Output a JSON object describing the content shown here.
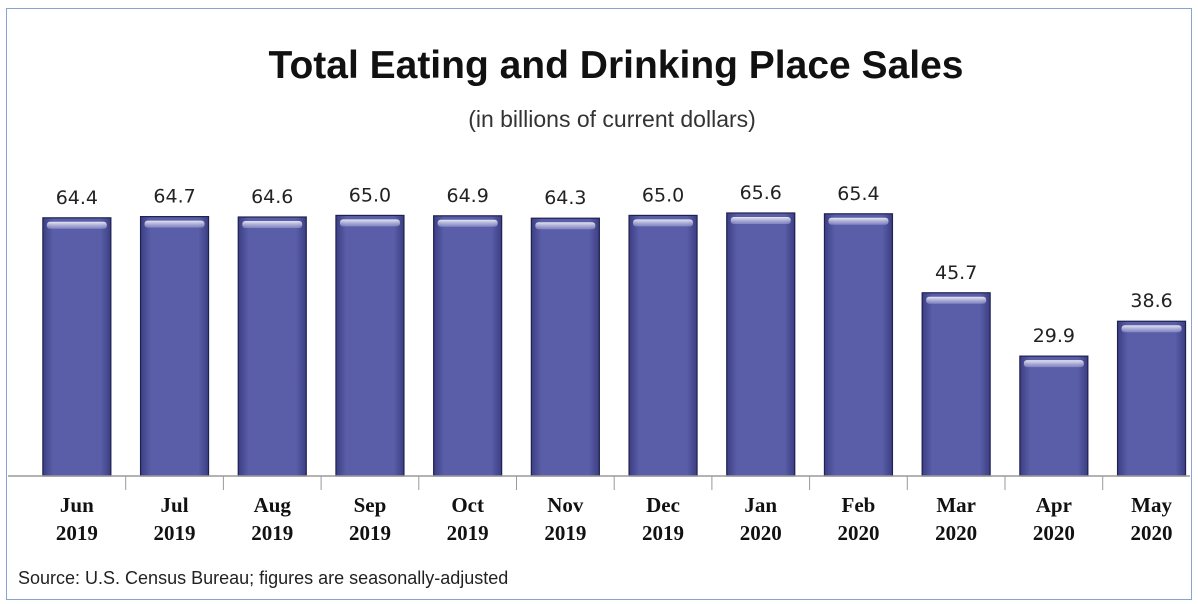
{
  "chart_data": {
    "type": "bar",
    "title": "Total Eating and Drinking Place Sales",
    "subtitle": "(in billions of current dollars)",
    "source": "Source: U.S. Census Bureau; figures are seasonally-adjusted",
    "categories": [
      [
        "Jun",
        "2019"
      ],
      [
        "Jul",
        "2019"
      ],
      [
        "Aug",
        "2019"
      ],
      [
        "Sep",
        "2019"
      ],
      [
        "Oct",
        "2019"
      ],
      [
        "Nov",
        "2019"
      ],
      [
        "Dec",
        "2019"
      ],
      [
        "Jan",
        "2020"
      ],
      [
        "Feb",
        "2020"
      ],
      [
        "Mar",
        "2020"
      ],
      [
        "Apr",
        "2020"
      ],
      [
        "May",
        "2020"
      ]
    ],
    "values": [
      64.4,
      64.7,
      64.6,
      65.0,
      64.9,
      64.3,
      65.0,
      65.6,
      65.4,
      45.7,
      29.9,
      38.6
    ],
    "value_labels": [
      "64.4",
      "64.7",
      "64.6",
      "65.0",
      "64.9",
      "64.3",
      "65.0",
      "65.6",
      "65.4",
      "45.7",
      "29.9",
      "38.6"
    ],
    "xlabel": "",
    "ylabel": "",
    "ylim": [
      0,
      66
    ],
    "grid": false,
    "bar_color": "#5a5ea8"
  }
}
